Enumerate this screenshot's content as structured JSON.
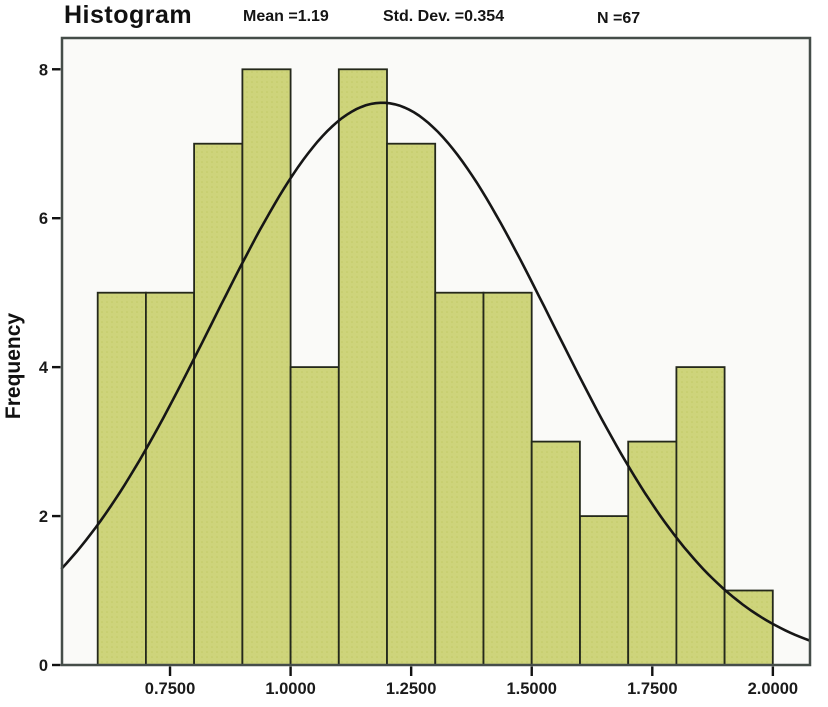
{
  "header": {
    "title": "Histogram",
    "stats": [
      "Mean =1.19",
      "Std. Dev. =0.354",
      "N =67"
    ]
  },
  "chart_data": {
    "type": "bar",
    "subtype": "histogram",
    "title": "Histogram",
    "xlabel": "",
    "ylabel": "Frequency",
    "n": 67,
    "mean": 1.19,
    "std_dev": 0.354,
    "bin_start": 0.6,
    "bin_width": 0.1,
    "values": [
      5,
      5,
      7,
      8,
      4,
      8,
      7,
      5,
      5,
      3,
      2,
      3,
      4,
      1
    ],
    "x_ticks": {
      "values": [
        0.75,
        1.0,
        1.25,
        1.5,
        1.75,
        2.0
      ],
      "labels": [
        "0.7500",
        "1.0000",
        "1.2500",
        "1.5000",
        "1.7500",
        "2.0000"
      ]
    },
    "y_ticks": {
      "values": [
        0,
        2,
        4,
        6,
        8
      ],
      "labels": [
        "0",
        "2",
        "4",
        "6",
        "8"
      ]
    },
    "xlim": [
      0.526,
      2.077
    ],
    "ylim": [
      0,
      8.42
    ],
    "grid": false,
    "legend": null,
    "normal_curve": true,
    "colors": {
      "bar_fill": "#ced47b",
      "bar_dot": "#c2c966",
      "bar_stroke": "#24281b",
      "curve": "#161616",
      "frame": "#454d49",
      "tick": "#111111",
      "plot_bg": "#fafaf8",
      "text": "#1a1a1a"
    }
  }
}
